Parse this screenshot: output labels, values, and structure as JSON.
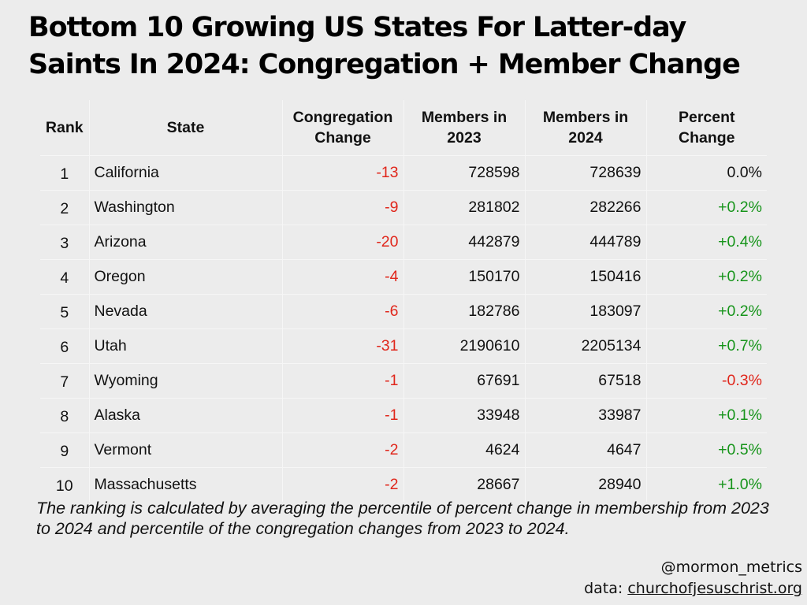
{
  "title": "Bottom 10 Growing US States For Latter-day Saints In 2024: Congregation + Member Change",
  "table": {
    "headers": [
      "Rank",
      "State",
      "Congregation Change",
      "Members in 2023",
      "Members in 2024",
      "Percent Change"
    ],
    "rows": [
      [
        "1",
        "California",
        "-13",
        "728598",
        "728639",
        "0.0%"
      ],
      [
        "2",
        "Washington",
        "-9",
        "281802",
        "282266",
        "+0.2%"
      ],
      [
        "3",
        "Arizona",
        "-20",
        "442879",
        "444789",
        "+0.4%"
      ],
      [
        "4",
        "Oregon",
        "-4",
        "150170",
        "150416",
        "+0.2%"
      ],
      [
        "5",
        "Nevada",
        "-6",
        "182786",
        "183097",
        "+0.2%"
      ],
      [
        "6",
        "Utah",
        "-31",
        "2190610",
        "2205134",
        "+0.7%"
      ],
      [
        "7",
        "Wyoming",
        "-1",
        "67691",
        "67518",
        "-0.3%"
      ],
      [
        "8",
        "Alaska",
        "-1",
        "33948",
        "33987",
        "+0.1%"
      ],
      [
        "9",
        "Vermont",
        "-2",
        "4624",
        "4647",
        "+0.5%"
      ],
      [
        "10",
        "Massachusetts",
        "-2",
        "28667",
        "28940",
        "+1.0%"
      ]
    ]
  },
  "note": "The ranking is calculated by averaging the percentile of percent change in membership from 2023 to 2024 and percentile of the congregation changes from 2023 to 2024.",
  "footer": {
    "handle": "@mormon_metrics",
    "data_prefix": "data: ",
    "data_link": "churchofjesuschrist.org"
  },
  "colors": {
    "negative": "#e0261b",
    "positive": "#16941a",
    "background": "#ececec"
  }
}
